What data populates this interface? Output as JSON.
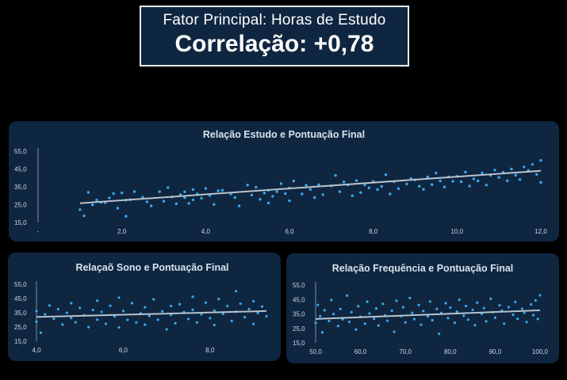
{
  "kpi": {
    "subtitle": "Fator Principal: Horas de Estudo",
    "headline": "Correlação: +0,78"
  },
  "chart_data": [
    {
      "type": "scatter",
      "title": "Relação Estudo e Pontuação Final",
      "xlabel": "",
      "ylabel": "",
      "xlim": [
        0,
        12
      ],
      "ylim": [
        15,
        55
      ],
      "x_ticks": [
        "-",
        "2,0",
        "4,0",
        "6,0",
        "8,0",
        "10,0",
        "12,0"
      ],
      "x_tick_values": [
        0,
        2,
        4,
        6,
        8,
        10,
        12
      ],
      "y_ticks": [
        "15,0",
        "25,0",
        "35,0",
        "45,0",
        "55,0"
      ],
      "y_tick_values": [
        15,
        25,
        35,
        45,
        55
      ],
      "trendline": [
        [
          1.0,
          25.8
        ],
        [
          12.0,
          44.0
        ]
      ],
      "point_color": "#39a8ee",
      "points": [
        [
          1.0,
          22.2
        ],
        [
          1.1,
          18.7
        ],
        [
          1.2,
          31.9
        ],
        [
          1.3,
          24.9
        ],
        [
          1.4,
          27.6
        ],
        [
          1.5,
          26.2
        ],
        [
          1.6,
          26.1
        ],
        [
          1.7,
          28.8
        ],
        [
          1.8,
          31.2
        ],
        [
          1.9,
          23.0
        ],
        [
          2.0,
          31.6
        ],
        [
          2.1,
          18.5
        ],
        [
          2.1,
          27.6
        ],
        [
          2.2,
          27.8
        ],
        [
          2.3,
          32.3
        ],
        [
          2.5,
          29.2
        ],
        [
          2.6,
          26.6
        ],
        [
          2.7,
          24.3
        ],
        [
          2.9,
          32.3
        ],
        [
          3.0,
          26.9
        ],
        [
          3.1,
          34.6
        ],
        [
          3.2,
          29.3
        ],
        [
          3.3,
          25.5
        ],
        [
          3.4,
          30.6
        ],
        [
          3.5,
          32.2
        ],
        [
          3.5,
          28.9
        ],
        [
          3.6,
          25.7
        ],
        [
          3.7,
          27.7
        ],
        [
          3.7,
          33.5
        ],
        [
          3.8,
          31.0
        ],
        [
          3.9,
          28.6
        ],
        [
          4.0,
          34.1
        ],
        [
          4.1,
          30.1
        ],
        [
          4.2,
          25.1
        ],
        [
          4.3,
          32.8
        ],
        [
          4.4,
          33.0
        ],
        [
          4.6,
          31.0
        ],
        [
          4.7,
          29.0
        ],
        [
          4.8,
          24.3
        ],
        [
          5.0,
          36.0
        ],
        [
          5.1,
          30.4
        ],
        [
          5.2,
          34.8
        ],
        [
          5.3,
          28.0
        ],
        [
          5.4,
          31.5
        ],
        [
          5.5,
          33.1
        ],
        [
          5.5,
          25.9
        ],
        [
          5.6,
          29.7
        ],
        [
          5.7,
          32.3
        ],
        [
          5.8,
          36.8
        ],
        [
          5.9,
          31.2
        ],
        [
          6.0,
          34.3
        ],
        [
          6.0,
          27.2
        ],
        [
          6.1,
          38.3
        ],
        [
          6.3,
          31.0
        ],
        [
          6.4,
          35.9
        ],
        [
          6.5,
          33.5
        ],
        [
          6.6,
          29.0
        ],
        [
          6.7,
          36.2
        ],
        [
          6.8,
          30.6
        ],
        [
          7.0,
          35.5
        ],
        [
          7.1,
          41.4
        ],
        [
          7.2,
          32.3
        ],
        [
          7.3,
          37.8
        ],
        [
          7.4,
          36.1
        ],
        [
          7.5,
          30.0
        ],
        [
          7.6,
          38.5
        ],
        [
          7.7,
          31.8
        ],
        [
          7.8,
          36.1
        ],
        [
          7.9,
          34.4
        ],
        [
          8.0,
          38.0
        ],
        [
          8.1,
          33.5
        ],
        [
          8.2,
          35.2
        ],
        [
          8.3,
          41.8
        ],
        [
          8.4,
          31.0
        ],
        [
          8.5,
          37.9
        ],
        [
          8.6,
          34.0
        ],
        [
          8.8,
          36.6
        ],
        [
          8.9,
          39.7
        ],
        [
          9.0,
          38.9
        ],
        [
          9.1,
          35.3
        ],
        [
          9.2,
          33.6
        ],
        [
          9.3,
          40.5
        ],
        [
          9.4,
          36.2
        ],
        [
          9.5,
          42.7
        ],
        [
          9.6,
          38.3
        ],
        [
          9.7,
          34.9
        ],
        [
          9.8,
          40.6
        ],
        [
          9.9,
          38.1
        ],
        [
          10.0,
          40.9
        ],
        [
          10.1,
          37.9
        ],
        [
          10.2,
          43.3
        ],
        [
          10.3,
          35.4
        ],
        [
          10.4,
          39.5
        ],
        [
          10.5,
          38.3
        ],
        [
          10.6,
          42.8
        ],
        [
          10.7,
          36.0
        ],
        [
          10.8,
          41.5
        ],
        [
          10.9,
          44.4
        ],
        [
          11.0,
          40.3
        ],
        [
          11.1,
          43.2
        ],
        [
          11.2,
          38.4
        ],
        [
          11.3,
          45.0
        ],
        [
          11.4,
          41.5
        ],
        [
          11.5,
          39.1
        ],
        [
          11.6,
          46.2
        ],
        [
          11.7,
          44.2
        ],
        [
          11.8,
          47.6
        ],
        [
          11.9,
          42.0
        ],
        [
          12.0,
          49.8
        ],
        [
          12.0,
          37.5
        ]
      ]
    },
    {
      "type": "scatter",
      "title": "Relaçaõ Sono e Pontuação Final",
      "xlabel": "",
      "ylabel": "",
      "xlim": [
        4,
        9.3
      ],
      "ylim": [
        15,
        55
      ],
      "x_ticks": [
        "4,0",
        "6,0",
        "8,0"
      ],
      "x_tick_values": [
        4,
        6,
        8
      ],
      "y_ticks": [
        "15,0",
        "25,0",
        "35,0",
        "45,0",
        "55,0"
      ],
      "y_tick_values": [
        15,
        25,
        35,
        45,
        55
      ],
      "trendline": [
        [
          4.0,
          32.0
        ],
        [
          9.3,
          36.2
        ]
      ],
      "point_color": "#39a8ee",
      "points": [
        [
          4.0,
          28.6
        ],
        [
          4.0,
          36.1
        ],
        [
          4.1,
          21.0
        ],
        [
          4.2,
          33.8
        ],
        [
          4.3,
          40.1
        ],
        [
          4.4,
          30.7
        ],
        [
          4.5,
          37.5
        ],
        [
          4.6,
          26.7
        ],
        [
          4.7,
          34.9
        ],
        [
          4.8,
          41.7
        ],
        [
          4.8,
          31.3
        ],
        [
          4.9,
          28.3
        ],
        [
          5.0,
          38.4
        ],
        [
          5.1,
          33.2
        ],
        [
          5.2,
          24.9
        ],
        [
          5.3,
          36.9
        ],
        [
          5.4,
          43.4
        ],
        [
          5.4,
          30.1
        ],
        [
          5.5,
          35.6
        ],
        [
          5.6,
          27.2
        ],
        [
          5.7,
          39.9
        ],
        [
          5.8,
          32.4
        ],
        [
          5.9,
          45.6
        ],
        [
          5.9,
          24.7
        ],
        [
          6.0,
          36.2
        ],
        [
          6.1,
          30.0
        ],
        [
          6.2,
          41.7
        ],
        [
          6.3,
          28.2
        ],
        [
          6.4,
          34.6
        ],
        [
          6.5,
          38.8
        ],
        [
          6.5,
          26.6
        ],
        [
          6.6,
          32.7
        ],
        [
          6.7,
          44.4
        ],
        [
          6.8,
          30.1
        ],
        [
          6.9,
          36.0
        ],
        [
          7.0,
          23.3
        ],
        [
          7.1,
          39.7
        ],
        [
          7.1,
          33.5
        ],
        [
          7.2,
          27.6
        ],
        [
          7.3,
          41.0
        ],
        [
          7.4,
          35.4
        ],
        [
          7.5,
          30.6
        ],
        [
          7.6,
          46.2
        ],
        [
          7.6,
          37.0
        ],
        [
          7.7,
          28.1
        ],
        [
          7.8,
          33.9
        ],
        [
          7.9,
          42.1
        ],
        [
          8.0,
          31.2
        ],
        [
          8.1,
          36.5
        ],
        [
          8.1,
          26.3
        ],
        [
          8.2,
          44.6
        ],
        [
          8.3,
          34.2
        ],
        [
          8.4,
          39.7
        ],
        [
          8.5,
          29.2
        ],
        [
          8.6,
          50.1
        ],
        [
          8.6,
          35.7
        ],
        [
          8.7,
          41.3
        ],
        [
          8.8,
          31.8
        ],
        [
          8.9,
          37.6
        ],
        [
          9.0,
          27.0
        ],
        [
          9.0,
          43.0
        ],
        [
          9.1,
          34.8
        ],
        [
          9.2,
          39.3
        ],
        [
          9.3,
          32.5
        ]
      ]
    },
    {
      "type": "scatter",
      "title": "Relação Frequência e Pontuação Final",
      "xlabel": "",
      "ylabel": "",
      "xlim": [
        50,
        100
      ],
      "ylim": [
        15,
        55
      ],
      "x_ticks": [
        "50,0",
        "60,0",
        "70,0",
        "80,0",
        "90,0",
        "100,0"
      ],
      "x_tick_values": [
        50,
        60,
        70,
        80,
        90,
        100
      ],
      "y_ticks": [
        "15,0",
        "25,0",
        "35,0",
        "45,0",
        "55,0"
      ],
      "y_tick_values": [
        15,
        25,
        35,
        45,
        55
      ],
      "trendline": [
        [
          50.0,
          31.5
        ],
        [
          100.0,
          37.5
        ]
      ],
      "point_color": "#39a8ee",
      "points": [
        [
          50.0,
          28.7
        ],
        [
          50.5,
          41.2
        ],
        [
          51.0,
          33.4
        ],
        [
          51.5,
          22.2
        ],
        [
          52.0,
          37.5
        ],
        [
          53.0,
          30.1
        ],
        [
          53.5,
          44.6
        ],
        [
          54.0,
          34.9
        ],
        [
          55.0,
          26.6
        ],
        [
          55.5,
          38.4
        ],
        [
          56.0,
          31.2
        ],
        [
          57.0,
          47.7
        ],
        [
          57.5,
          29.5
        ],
        [
          58.0,
          36.2
        ],
        [
          59.0,
          24.1
        ],
        [
          59.5,
          40.3
        ],
        [
          60.0,
          33.0
        ],
        [
          61.0,
          28.2
        ],
        [
          61.5,
          43.5
        ],
        [
          62.0,
          35.3
        ],
        [
          63.0,
          31.6
        ],
        [
          63.5,
          38.8
        ],
        [
          64.0,
          26.9
        ],
        [
          65.0,
          41.9
        ],
        [
          65.5,
          34.0
        ],
        [
          66.0,
          30.3
        ],
        [
          67.0,
          37.2
        ],
        [
          67.5,
          22.6
        ],
        [
          68.0,
          44.1
        ],
        [
          69.0,
          33.5
        ],
        [
          69.5,
          39.6
        ],
        [
          70.0,
          29.1
        ],
        [
          71.0,
          46.0
        ],
        [
          71.5,
          35.7
        ],
        [
          72.0,
          31.4
        ],
        [
          73.0,
          41.2
        ],
        [
          73.5,
          27.5
        ],
        [
          74.0,
          37.0
        ],
        [
          75.0,
          33.2
        ],
        [
          75.5,
          43.6
        ],
        [
          76.0,
          30.6
        ],
        [
          77.0,
          38.4
        ],
        [
          77.5,
          21.2
        ],
        [
          78.0,
          35.6
        ],
        [
          79.0,
          42.4
        ],
        [
          79.5,
          32.1
        ],
        [
          80.0,
          39.3
        ],
        [
          81.0,
          28.9
        ],
        [
          81.5,
          36.6
        ],
        [
          82.0,
          44.8
        ],
        [
          83.0,
          33.7
        ],
        [
          83.5,
          40.5
        ],
        [
          84.0,
          31.0
        ],
        [
          85.0,
          37.8
        ],
        [
          85.5,
          27.2
        ],
        [
          86.0,
          42.8
        ],
        [
          87.0,
          35.0
        ],
        [
          87.5,
          39.0
        ],
        [
          88.0,
          29.8
        ],
        [
          89.0,
          45.5
        ],
        [
          89.5,
          36.2
        ],
        [
          90.0,
          32.4
        ],
        [
          91.0,
          41.0
        ],
        [
          91.5,
          37.3
        ],
        [
          92.0,
          28.2
        ],
        [
          93.0,
          39.7
        ],
        [
          94.0,
          34.4
        ],
        [
          94.5,
          43.2
        ],
        [
          95.0,
          31.6
        ],
        [
          96.0,
          38.5
        ],
        [
          96.5,
          35.8
        ],
        [
          97.0,
          29.3
        ],
        [
          98.0,
          41.6
        ],
        [
          98.5,
          34.1
        ],
        [
          99.0,
          44.3
        ],
        [
          99.5,
          31.5
        ],
        [
          100.0,
          47.9
        ]
      ]
    }
  ]
}
